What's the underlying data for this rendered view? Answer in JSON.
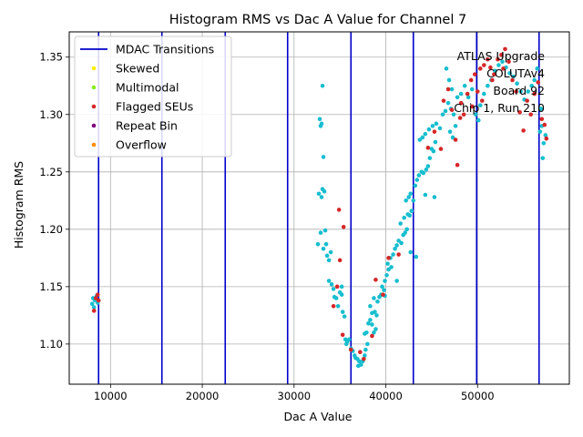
{
  "chart_data": {
    "type": "scatter",
    "title": "Histogram RMS vs Dac A Value for Channel 7",
    "xlabel": "Dac A Value",
    "ylabel": "Histogram RMS",
    "xlim": [
      5500,
      60000
    ],
    "ylim": [
      1.065,
      1.372
    ],
    "xticks": [
      10000,
      20000,
      30000,
      40000,
      50000
    ],
    "yticks": [
      1.1,
      1.15,
      1.2,
      1.25,
      1.3,
      1.35
    ],
    "xtick_labels": [
      "10000",
      "20000",
      "30000",
      "40000",
      "50000"
    ],
    "ytick_labels": [
      "1.10",
      "1.15",
      "1.20",
      "1.25",
      "1.30",
      "1.35"
    ],
    "grid": true,
    "legend_position": "top-left",
    "legend": [
      {
        "label": "MDAC Transitions",
        "kind": "line",
        "color": "#0000cc"
      },
      {
        "label": "Skewed",
        "kind": "marker",
        "color": "#ffee00"
      },
      {
        "label": "Multimodal",
        "kind": "marker",
        "color": "#88ee22"
      },
      {
        "label": "Flagged SEUs",
        "kind": "marker",
        "color": "#d62728"
      },
      {
        "label": "Repeat Bin",
        "kind": "marker",
        "color": "#800080"
      },
      {
        "label": "Overflow",
        "kind": "marker",
        "color": "#ff8c00"
      }
    ],
    "annotation": [
      "ATLAS Upgrade",
      "COLUTAv4",
      "Board 92",
      "Chip 1, Run 210"
    ],
    "mdac_transitions": [
      8700,
      15600,
      22500,
      29300,
      36200,
      43000,
      49900,
      56700
    ],
    "series": [
      {
        "kind": "normal",
        "color": "#17becf",
        "points": [
          [
            8000,
            1.135
          ],
          [
            8100,
            1.14
          ],
          [
            8200,
            1.132
          ],
          [
            8300,
            1.138
          ],
          [
            8500,
            1.142
          ],
          [
            8600,
            1.136
          ],
          [
            32800,
            1.296
          ],
          [
            32900,
            1.29
          ],
          [
            33000,
            1.292
          ],
          [
            33100,
            1.325
          ],
          [
            33200,
            1.263
          ],
          [
            32700,
            1.231
          ],
          [
            33000,
            1.228
          ],
          [
            33300,
            1.233
          ],
          [
            33100,
            1.235
          ],
          [
            32900,
            1.197
          ],
          [
            33400,
            1.199
          ],
          [
            32600,
            1.187
          ],
          [
            33200,
            1.183
          ],
          [
            33500,
            1.187
          ],
          [
            33600,
            1.177
          ],
          [
            33800,
            1.173
          ],
          [
            34000,
            1.18
          ],
          [
            33800,
            1.155
          ],
          [
            34100,
            1.152
          ],
          [
            34300,
            1.148
          ],
          [
            34400,
            1.141
          ],
          [
            34600,
            1.14
          ],
          [
            34800,
            1.133
          ],
          [
            35000,
            1.145
          ],
          [
            35200,
            1.143
          ],
          [
            35300,
            1.128
          ],
          [
            35500,
            1.124
          ],
          [
            35200,
            1.15
          ],
          [
            35600,
            1.104
          ],
          [
            35700,
            1.1
          ],
          [
            35800,
            1.102
          ],
          [
            36000,
            1.104
          ],
          [
            36200,
            1.096
          ],
          [
            36400,
            1.094
          ],
          [
            36600,
            1.09
          ],
          [
            36700,
            1.088
          ],
          [
            36900,
            1.087
          ],
          [
            37000,
            1.081
          ],
          [
            37100,
            1.085
          ],
          [
            37300,
            1.082
          ],
          [
            37500,
            1.085
          ],
          [
            37700,
            1.09
          ],
          [
            37800,
            1.095
          ],
          [
            38000,
            1.1
          ],
          [
            37700,
            1.109
          ],
          [
            37900,
            1.11
          ],
          [
            38100,
            1.118
          ],
          [
            38300,
            1.121
          ],
          [
            38500,
            1.117
          ],
          [
            38700,
            1.11
          ],
          [
            38900,
            1.113
          ],
          [
            38500,
            1.127
          ],
          [
            38800,
            1.128
          ],
          [
            39000,
            1.125
          ],
          [
            38300,
            1.133
          ],
          [
            38700,
            1.14
          ],
          [
            39100,
            1.137
          ],
          [
            39300,
            1.141
          ],
          [
            39500,
            1.143
          ],
          [
            39800,
            1.147
          ],
          [
            39600,
            1.15
          ],
          [
            39900,
            1.155
          ],
          [
            40100,
            1.16
          ],
          [
            40300,
            1.165
          ],
          [
            40200,
            1.17
          ],
          [
            40500,
            1.175
          ],
          [
            40800,
            1.178
          ],
          [
            41000,
            1.183
          ],
          [
            41200,
            1.186
          ],
          [
            41400,
            1.19
          ],
          [
            41700,
            1.188
          ],
          [
            41900,
            1.195
          ],
          [
            42100,
            1.197
          ],
          [
            42300,
            1.2
          ],
          [
            41600,
            1.205
          ],
          [
            42000,
            1.21
          ],
          [
            42400,
            1.213
          ],
          [
            42600,
            1.212
          ],
          [
            42800,
            1.216
          ],
          [
            42200,
            1.225
          ],
          [
            42500,
            1.228
          ],
          [
            42700,
            1.231
          ],
          [
            43000,
            1.225
          ],
          [
            43200,
            1.238
          ],
          [
            43400,
            1.243
          ],
          [
            43600,
            1.247
          ],
          [
            43900,
            1.25
          ],
          [
            44100,
            1.249
          ],
          [
            44400,
            1.252
          ],
          [
            44600,
            1.255
          ],
          [
            44800,
            1.262
          ],
          [
            45000,
            1.27
          ],
          [
            45200,
            1.268
          ],
          [
            45400,
            1.276
          ],
          [
            43700,
            1.278
          ],
          [
            44000,
            1.28
          ],
          [
            44300,
            1.283
          ],
          [
            44700,
            1.287
          ],
          [
            45100,
            1.29
          ],
          [
            45500,
            1.292
          ],
          [
            45900,
            1.288
          ],
          [
            46200,
            1.3
          ],
          [
            46500,
            1.303
          ],
          [
            46800,
            1.31
          ],
          [
            47100,
            1.305
          ],
          [
            47400,
            1.3
          ],
          [
            47600,
            1.29
          ],
          [
            47000,
            1.285
          ],
          [
            47300,
            1.28
          ],
          [
            46600,
            1.34
          ],
          [
            46900,
            1.33
          ],
          [
            47200,
            1.322
          ],
          [
            47800,
            1.315
          ],
          [
            48200,
            1.318
          ],
          [
            48600,
            1.325
          ],
          [
            49000,
            1.315
          ],
          [
            49400,
            1.322
          ],
          [
            49800,
            1.3
          ],
          [
            50100,
            1.295
          ],
          [
            50300,
            1.308
          ],
          [
            50700,
            1.318
          ],
          [
            51100,
            1.325
          ],
          [
            51500,
            1.33
          ],
          [
            51900,
            1.338
          ],
          [
            52300,
            1.343
          ],
          [
            52700,
            1.346
          ],
          [
            53100,
            1.341
          ],
          [
            53500,
            1.336
          ],
          [
            53900,
            1.333
          ],
          [
            54300,
            1.327
          ],
          [
            54700,
            1.32
          ],
          [
            55100,
            1.313
          ],
          [
            55500,
            1.32
          ],
          [
            55900,
            1.325
          ],
          [
            56200,
            1.33
          ],
          [
            56500,
            1.34
          ],
          [
            56800,
            1.285
          ],
          [
            57000,
            1.29
          ],
          [
            57200,
            1.275
          ],
          [
            57400,
            1.282
          ],
          [
            57100,
            1.262
          ],
          [
            56900,
            1.305
          ],
          [
            44300,
            1.23
          ],
          [
            45300,
            1.228
          ],
          [
            43300,
            1.176
          ],
          [
            42700,
            1.18
          ],
          [
            41200,
            1.155
          ],
          [
            40600,
            1.167
          ],
          [
            39900,
            1.142
          ]
        ]
      },
      {
        "kind": "flagged",
        "color": "#d62728",
        "points": [
          [
            8200,
            1.129
          ],
          [
            8400,
            1.14
          ],
          [
            8700,
            1.138
          ],
          [
            8600,
            1.143
          ],
          [
            34300,
            1.133
          ],
          [
            34700,
            1.15
          ],
          [
            35000,
            1.173
          ],
          [
            34900,
            1.217
          ],
          [
            35400,
            1.202
          ],
          [
            35300,
            1.108
          ],
          [
            36200,
            1.095
          ],
          [
            37200,
            1.093
          ],
          [
            37600,
            1.087
          ],
          [
            38500,
            1.107
          ],
          [
            38900,
            1.156
          ],
          [
            39700,
            1.143
          ],
          [
            40300,
            1.175
          ],
          [
            41400,
            1.178
          ],
          [
            44600,
            1.271
          ],
          [
            45300,
            1.285
          ],
          [
            46000,
            1.27
          ],
          [
            46300,
            1.312
          ],
          [
            46800,
            1.322
          ],
          [
            47200,
            1.304
          ],
          [
            47600,
            1.278
          ],
          [
            47800,
            1.256
          ],
          [
            48100,
            1.297
          ],
          [
            48500,
            1.3
          ],
          [
            48900,
            1.318
          ],
          [
            49300,
            1.33
          ],
          [
            49700,
            1.335
          ],
          [
            50000,
            1.32
          ],
          [
            50300,
            1.34
          ],
          [
            50700,
            1.343
          ],
          [
            51100,
            1.348
          ],
          [
            51400,
            1.341
          ],
          [
            51800,
            1.335
          ],
          [
            52200,
            1.348
          ],
          [
            52600,
            1.352
          ],
          [
            53000,
            1.357
          ],
          [
            53400,
            1.346
          ],
          [
            53800,
            1.33
          ],
          [
            54200,
            1.32
          ],
          [
            54600,
            1.302
          ],
          [
            55000,
            1.286
          ],
          [
            55400,
            1.312
          ],
          [
            55800,
            1.3
          ],
          [
            56200,
            1.318
          ],
          [
            56600,
            1.328
          ],
          [
            57000,
            1.296
          ],
          [
            57300,
            1.291
          ],
          [
            57500,
            1.279
          ],
          [
            52800,
            1.34
          ],
          [
            51600,
            1.33
          ],
          [
            50500,
            1.312
          ],
          [
            49400,
            1.307
          ],
          [
            48200,
            1.31
          ]
        ]
      }
    ]
  }
}
